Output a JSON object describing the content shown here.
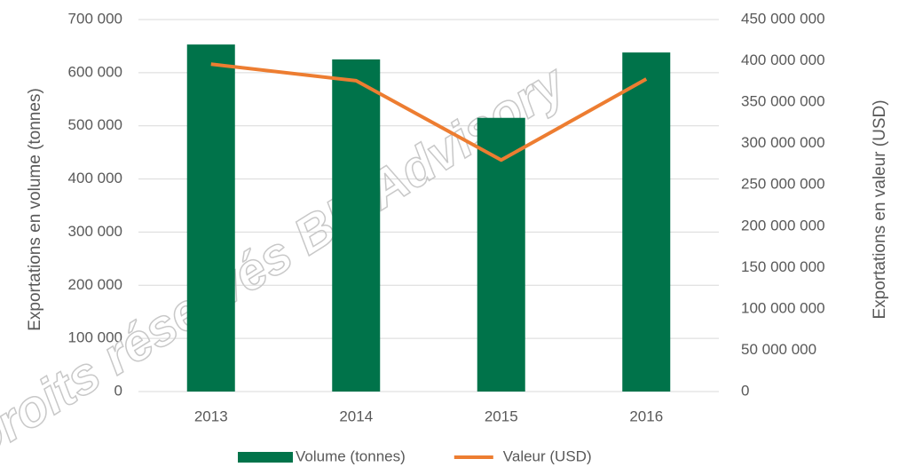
{
  "chart_data": {
    "type": "bar_line",
    "categories": [
      "2013",
      "2014",
      "2015",
      "2016"
    ],
    "series": [
      {
        "name": "Volume (tonnes)",
        "color": "#00734a",
        "type": "bar",
        "axis": "y",
        "values": [
          653000,
          625000,
          515000,
          638000
        ]
      },
      {
        "name": "Valeur (USD)",
        "color": "#ed7d31",
        "type": "line",
        "axis": "y2",
        "values": [
          396000000,
          376000000,
          280000000,
          378000000
        ]
      }
    ],
    "ylabel": "Exportations en volume (tonnes)",
    "y2label": "Exportations en valeur (USD)",
    "ylim": [
      0,
      700000
    ],
    "yticks": [
      0,
      {
        "value": 100000,
        "label": "100 000"
      },
      {
        "value": 200000,
        "label": "200 000"
      },
      {
        "value": 300000,
        "label": "300 000"
      },
      {
        "value": 400000,
        "label": "400 000"
      },
      {
        "value": 500000,
        "label": "500 000"
      },
      {
        "value": 600000,
        "label": "600 000"
      },
      {
        "value": 700000,
        "label": "700 000"
      }
    ],
    "y2lim": [
      0,
      450000000
    ],
    "y2ticks": [
      0,
      {
        "value": 50000000,
        "label": "50 000 000"
      },
      {
        "value": 100000000,
        "label": "100 000 000"
      },
      {
        "value": 150000000,
        "label": "150 000 000"
      },
      {
        "value": 200000000,
        "label": "200 000 000"
      },
      {
        "value": 250000000,
        "label": "250 000 000"
      },
      {
        "value": 300000000,
        "label": "300 000 000"
      },
      {
        "value": 350000000,
        "label": "350 000 000"
      },
      {
        "value": 400000000,
        "label": "400 000 000"
      },
      {
        "value": 450000000,
        "label": "450 000 000"
      }
    ],
    "grid": true,
    "legend": "bottom",
    "watermark": "Droits réservés BH Advisory"
  }
}
